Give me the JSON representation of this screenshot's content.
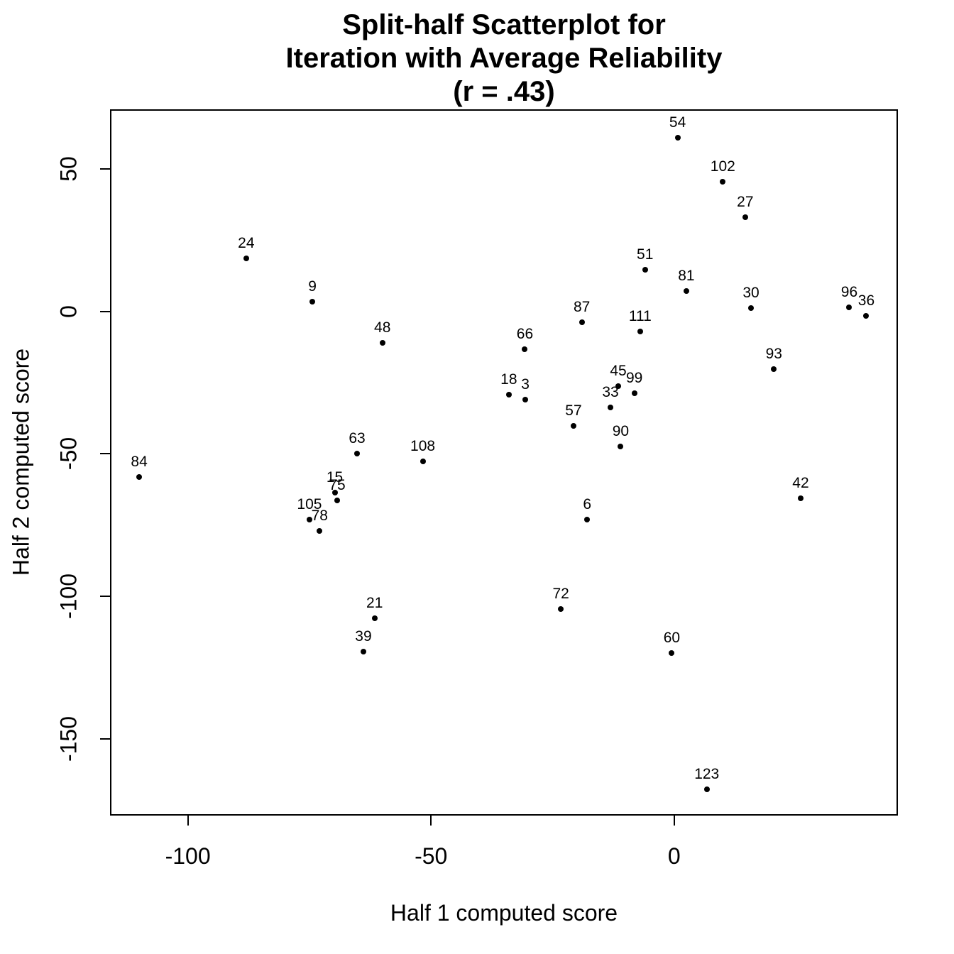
{
  "chart_data": {
    "type": "scatter",
    "title_lines": [
      "Split-half Scatterplot for",
      "Iteration with Average Reliability",
      "(r = .43)"
    ],
    "r_value": ".43",
    "xlabel": "Half 1 computed score",
    "ylabel": "Half 2 computed score",
    "xlim": [
      -116,
      46
    ],
    "ylim": [
      -177,
      71
    ],
    "x_ticks": [
      -100,
      -50,
      0
    ],
    "y_ticks": [
      50,
      0,
      -50,
      -100,
      -150
    ],
    "grid": false,
    "legend": "none",
    "point_color": "#000000",
    "point_label_position": "above",
    "points": [
      {
        "label": "3",
        "x": -30.6,
        "y": -31
      },
      {
        "label": "6",
        "x": -17.9,
        "y": -73
      },
      {
        "label": "9",
        "x": -74.4,
        "y": 3.5
      },
      {
        "label": "15",
        "x": -69.8,
        "y": -63.7
      },
      {
        "label": "18",
        "x": -34,
        "y": -29.2
      },
      {
        "label": "21",
        "x": -61.6,
        "y": -107.8
      },
      {
        "label": "24",
        "x": -88,
        "y": 18.7
      },
      {
        "label": "27",
        "x": 14.6,
        "y": 33
      },
      {
        "label": "30",
        "x": 15.8,
        "y": 1.2
      },
      {
        "label": "33",
        "x": -13.1,
        "y": -33.8
      },
      {
        "label": "36",
        "x": 39.5,
        "y": -1.6
      },
      {
        "label": "39",
        "x": -63.9,
        "y": -119.5
      },
      {
        "label": "42",
        "x": 26,
        "y": -65.7
      },
      {
        "label": "45",
        "x": -11.5,
        "y": -26.3
      },
      {
        "label": "48",
        "x": -60,
        "y": -11
      },
      {
        "label": "51",
        "x": -6,
        "y": 14.7
      },
      {
        "label": "54",
        "x": 0.7,
        "y": 61
      },
      {
        "label": "57",
        "x": -20.7,
        "y": -40.2
      },
      {
        "label": "60",
        "x": -0.5,
        "y": -120
      },
      {
        "label": "63",
        "x": -65.2,
        "y": -50
      },
      {
        "label": "66",
        "x": -30.7,
        "y": -13.3
      },
      {
        "label": "72",
        "x": -23.3,
        "y": -104.5
      },
      {
        "label": "75",
        "x": -69.3,
        "y": -66.4
      },
      {
        "label": "78",
        "x": -72.9,
        "y": -77
      },
      {
        "label": "81",
        "x": 2.5,
        "y": 7.3
      },
      {
        "label": "84",
        "x": -110,
        "y": -58
      },
      {
        "label": "87",
        "x": -19,
        "y": -3.8
      },
      {
        "label": "90",
        "x": -11,
        "y": -47.3
      },
      {
        "label": "93",
        "x": 20.5,
        "y": -20.3
      },
      {
        "label": "96",
        "x": 36,
        "y": 1.5
      },
      {
        "label": "99",
        "x": -8.2,
        "y": -28.8
      },
      {
        "label": "102",
        "x": 10,
        "y": 45.5
      },
      {
        "label": "105",
        "x": -75,
        "y": -73
      },
      {
        "label": "108",
        "x": -51.7,
        "y": -52.7
      },
      {
        "label": "111",
        "x": -7,
        "y": -7
      },
      {
        "label": "123",
        "x": 6.7,
        "y": -167.8
      }
    ]
  }
}
